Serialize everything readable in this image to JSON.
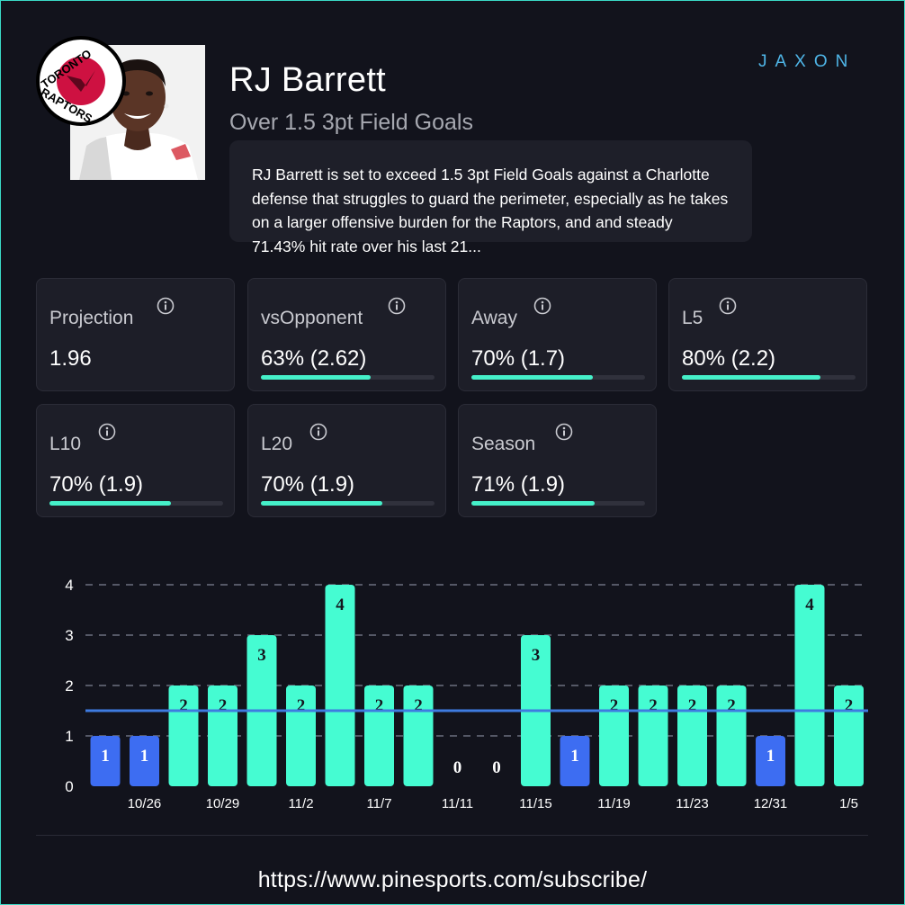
{
  "player": {
    "name": "RJ Barrett",
    "prop": "Over 1.5 3pt Field Goals",
    "team_logo_text_top": "TORONTO",
    "team_logo_text_bottom": "RAPTORS"
  },
  "brand": {
    "logo_text": "JAXON",
    "color": "#4fb6e8"
  },
  "analysis": {
    "text": "RJ Barrett is set to exceed 1.5 3pt Field Goals against a Charlotte defense that struggles to guard the perimeter, especially as he takes on a larger offensive burden for the Raptors, and and steady 71.43% hit rate over his last 21..."
  },
  "stats": [
    {
      "label": "Projection",
      "value": "1.96",
      "pct": null
    },
    {
      "label": "vsOpponent",
      "value": "63% (2.62)",
      "pct": 0.63
    },
    {
      "label": "Away",
      "value": "70% (1.7)",
      "pct": 0.7
    },
    {
      "label": "L5",
      "value": "80% (2.2)",
      "pct": 0.8
    },
    {
      "label": "L10",
      "value": "70% (1.9)",
      "pct": 0.7
    },
    {
      "label": "L20",
      "value": "70% (1.9)",
      "pct": 0.7
    },
    {
      "label": "Season",
      "value": "71% (1.9)",
      "pct": 0.71
    }
  ],
  "chart_data": {
    "type": "bar",
    "values": [
      1,
      1,
      2,
      2,
      3,
      2,
      4,
      2,
      2,
      0,
      0,
      3,
      1,
      2,
      2,
      2,
      2,
      1,
      4,
      2
    ],
    "x_tick_labels": [
      "",
      "10/26",
      "",
      "10/29",
      "",
      "11/2",
      "",
      "11/7",
      "",
      "11/11",
      "",
      "11/15",
      "",
      "11/19",
      "",
      "11/23",
      "",
      "12/31",
      "",
      "1/5"
    ],
    "yticks": [
      0,
      1,
      2,
      3,
      4
    ],
    "ylim": [
      0,
      4
    ],
    "line": 1.5,
    "grid": true,
    "colors": {
      "over": "#45fcd2",
      "under": "#3d6df2",
      "line": "#3e7be0",
      "grid": "#555866"
    }
  },
  "footer": {
    "url": "https://www.pinesports.com/subscribe/"
  }
}
